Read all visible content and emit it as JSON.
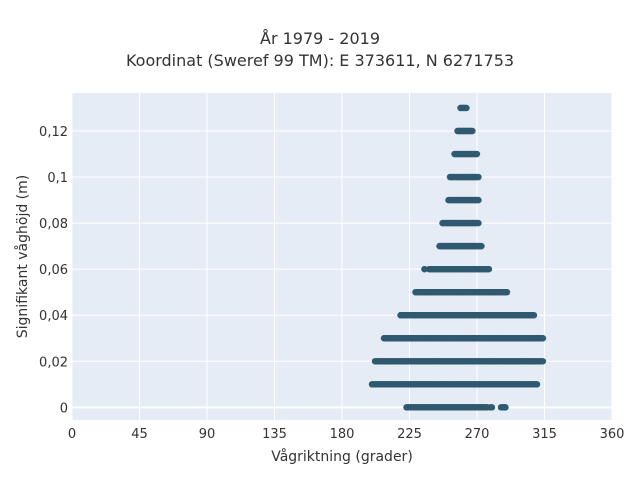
{
  "chart_data": {
    "type": "scatter",
    "title": "År 1979 - 2019",
    "subtitle": "Koordinat (Sweref 99 TM): E 373611, N 6271753",
    "xlabel": "Vågriktning (grader)",
    "ylabel": "Signifikant våghöjd (m)",
    "xlim": [
      0,
      360
    ],
    "ylim": [
      -0.0055,
      0.1365
    ],
    "xticks": [
      0,
      45,
      90,
      135,
      180,
      225,
      270,
      315,
      360
    ],
    "yticks": [
      0,
      0.02,
      0.04,
      0.06,
      0.08,
      0.1,
      0.12
    ],
    "yticklabels": [
      "0",
      "0,02",
      "0,04",
      "0,06",
      "0,08",
      "0,1",
      "0,12"
    ],
    "grid": true,
    "legend": "none",
    "colors": {
      "plot_background": "#E5ECF6",
      "grid": "#FFFFFF",
      "marker": "#2F5A70",
      "text": "#333333"
    },
    "series": [
      {
        "points": [
          {
            "y": 0.0,
            "x_min": 223,
            "x_max": 263
          },
          {
            "y": 0.0,
            "x_min": 264,
            "x_max": 277
          },
          {
            "y": 0.0,
            "x_min": 279,
            "x_max": 280
          },
          {
            "y": 0.0,
            "x_min": 286,
            "x_max": 289
          },
          {
            "y": 0.01,
            "x_min": 200,
            "x_max": 310
          },
          {
            "y": 0.02,
            "x_min": 202,
            "x_max": 314
          },
          {
            "y": 0.03,
            "x_min": 208,
            "x_max": 314
          },
          {
            "y": 0.04,
            "x_min": 219,
            "x_max": 308
          },
          {
            "y": 0.05,
            "x_min": 229,
            "x_max": 290
          },
          {
            "y": 0.06,
            "x_min": 238,
            "x_max": 278
          },
          {
            "y": 0.06,
            "x_min": 235,
            "x_max": 235
          },
          {
            "y": 0.07,
            "x_min": 245,
            "x_max": 273
          },
          {
            "y": 0.08,
            "x_min": 247,
            "x_max": 271
          },
          {
            "y": 0.09,
            "x_min": 251,
            "x_max": 271
          },
          {
            "y": 0.1,
            "x_min": 252,
            "x_max": 271
          },
          {
            "y": 0.11,
            "x_min": 255,
            "x_max": 270
          },
          {
            "y": 0.12,
            "x_min": 257,
            "x_max": 267
          },
          {
            "y": 0.13,
            "x_min": 259,
            "x_max": 263
          }
        ]
      }
    ]
  }
}
